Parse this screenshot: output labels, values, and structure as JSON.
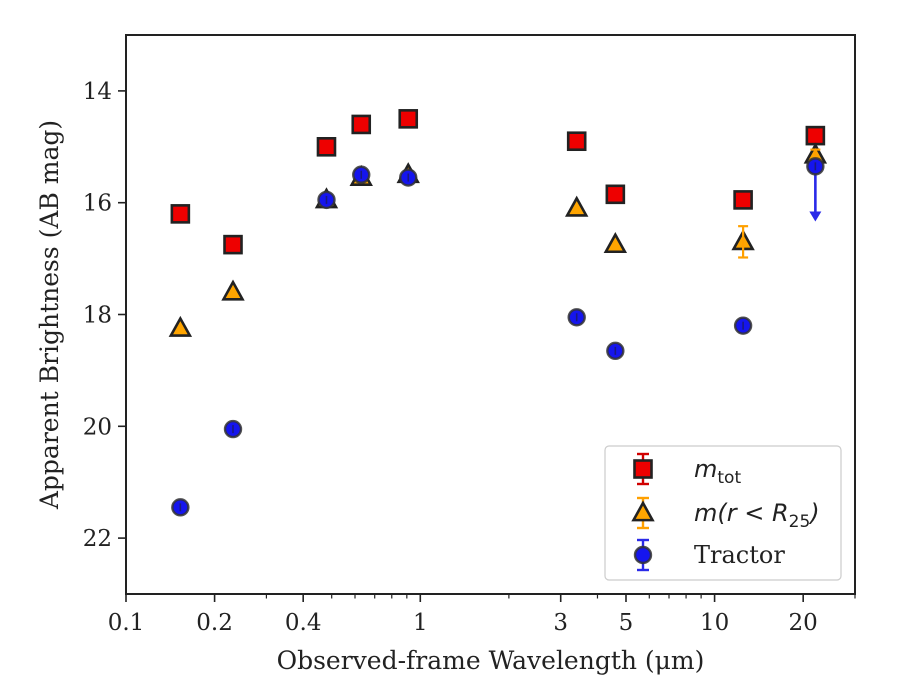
{
  "chart_data": {
    "type": "scatter",
    "xlabel": "Observed-frame Wavelength (μm)",
    "ylabel": "Apparent Brightness (AB mag)",
    "x_scale": "log",
    "x_range": [
      0.1,
      30
    ],
    "y_range": [
      23,
      13
    ],
    "y_inverted": true,
    "x_ticks": [
      0.1,
      0.2,
      0.4,
      1,
      3,
      5,
      10,
      20
    ],
    "x_tick_labels": [
      "0.1",
      "0.2",
      "0.4",
      "1",
      "3",
      "5",
      "10",
      "20"
    ],
    "y_ticks": [
      14,
      16,
      18,
      20,
      22
    ],
    "y_tick_labels": [
      "14",
      "16",
      "18",
      "20",
      "22"
    ],
    "grid": false,
    "legend_position": "lower-right",
    "series": [
      {
        "key": "mtot",
        "name": "m_tot",
        "marker": "square",
        "color": "#ee0000",
        "x": [
          0.153,
          0.231,
          0.48,
          0.63,
          0.91,
          3.4,
          4.6,
          12.5,
          22.0
        ],
        "y": [
          16.2,
          16.75,
          15.0,
          14.6,
          14.5,
          14.9,
          15.85,
          15.95,
          14.8
        ],
        "yerr": [
          0.03,
          0.03,
          0.02,
          0.02,
          0.02,
          0.02,
          0.03,
          0.05,
          0.05
        ]
      },
      {
        "key": "mr25",
        "name": "m(r < R25)",
        "marker": "triangle",
        "color": "#ffa500",
        "x": [
          0.153,
          0.231,
          0.48,
          0.63,
          0.91,
          3.4,
          4.6,
          12.5,
          22.0
        ],
        "y": [
          18.25,
          17.6,
          15.95,
          15.55,
          15.5,
          16.1,
          16.75,
          16.7,
          15.15
        ],
        "yerr": [
          0.03,
          0.03,
          0.02,
          0.02,
          0.02,
          0.03,
          0.05,
          0.28,
          0.1
        ]
      },
      {
        "key": "tractor",
        "name": "Tractor",
        "marker": "circle",
        "color": "#1515ee",
        "x": [
          0.153,
          0.231,
          0.48,
          0.63,
          0.91,
          3.4,
          4.6,
          12.5,
          22.0
        ],
        "y": [
          21.45,
          20.05,
          15.95,
          15.5,
          15.55,
          18.05,
          18.65,
          18.2,
          15.35
        ],
        "yerr": [
          0.08,
          0.06,
          0.02,
          0.02,
          0.02,
          0.02,
          0.03,
          0.05,
          0.0
        ],
        "upper_limit_index": 8,
        "upper_limit_to": 16.3
      }
    ]
  },
  "legend": {
    "mtot_main": "m",
    "mtot_sub": "tot",
    "mr25_pre": "m(r < R",
    "mr25_sub": "25",
    "mr25_post": ")",
    "tractor": "Tractor"
  }
}
